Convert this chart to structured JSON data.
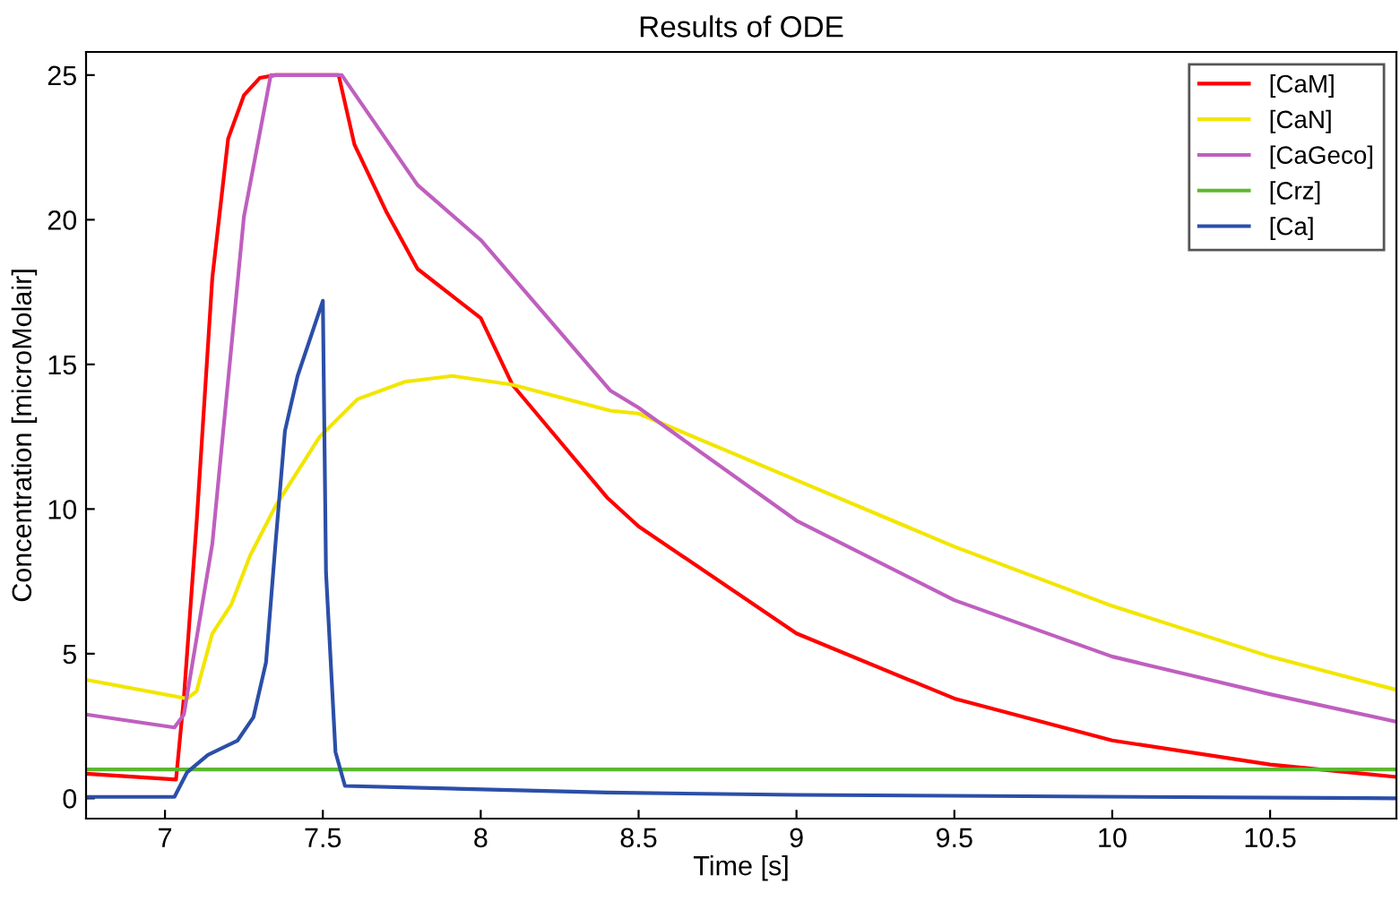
{
  "chart_data": {
    "type": "line",
    "title": "Results of ODE",
    "xlabel": "Time [s]",
    "ylabel": "Concentration [microMolair]",
    "xlim": [
      6.75,
      10.9
    ],
    "ylim": [
      -0.7,
      25.8
    ],
    "xticks": [
      7,
      7.5,
      8,
      8.5,
      9,
      9.5,
      10,
      10.5
    ],
    "yticks": [
      0,
      5,
      10,
      15,
      20,
      25
    ],
    "grid": false,
    "legend": "top right",
    "marker": "none",
    "line_style": "solid",
    "series": [
      {
        "name": "[CaM]",
        "color": "#ff0000",
        "x": [
          6.75,
          7.035,
          7.06,
          7.1,
          7.15,
          7.2,
          7.25,
          7.3,
          7.35,
          7.55,
          7.6,
          7.7,
          7.8,
          8.0,
          8.1,
          8.4,
          8.5,
          9.0,
          9.5,
          10.0,
          10.5,
          10.9
        ],
        "values": [
          0.85,
          0.65,
          3.5,
          9.5,
          18,
          22.8,
          24.3,
          24.9,
          25,
          25,
          22.6,
          20.3,
          18.3,
          16.6,
          14.3,
          10.4,
          9.4,
          5.7,
          3.45,
          2.0,
          1.17,
          0.74
        ]
      },
      {
        "name": "[CaN]",
        "color": "#f2e600",
        "x": [
          6.75,
          7.07,
          7.1,
          7.15,
          7.21,
          7.27,
          7.35,
          7.49,
          7.61,
          7.76,
          7.91,
          8.1,
          8.41,
          8.5,
          9.0,
          9.5,
          10.0,
          10.5,
          10.9
        ],
        "values": [
          4.1,
          3.45,
          3.7,
          5.7,
          6.7,
          8.4,
          10.1,
          12.5,
          13.8,
          14.4,
          14.6,
          14.3,
          13.4,
          13.3,
          11.0,
          8.7,
          6.65,
          4.9,
          3.75
        ]
      },
      {
        "name": "[CaGeco]",
        "color": "#bf5fbf",
        "x": [
          6.75,
          7.03,
          7.06,
          7.15,
          7.25,
          7.335,
          7.56,
          7.8,
          8.0,
          8.41,
          8.5,
          9.0,
          9.5,
          10.0,
          10.5,
          10.9
        ],
        "values": [
          2.9,
          2.45,
          2.9,
          8.8,
          20.1,
          25,
          25,
          21.2,
          19.3,
          14.1,
          13.5,
          9.6,
          6.85,
          4.9,
          3.6,
          2.65
        ]
      },
      {
        "name": "[Crz]",
        "color": "#5cb82e",
        "x": [
          6.75,
          10.9
        ],
        "values": [
          1,
          1
        ]
      },
      {
        "name": "[Ca]",
        "color": "#2b4fa8",
        "x": [
          6.75,
          7.03,
          7.07,
          7.136,
          7.23,
          7.28,
          7.32,
          7.35,
          7.38,
          7.42,
          7.5,
          7.51,
          7.54,
          7.57,
          8.4,
          9.0,
          10.9
        ],
        "values": [
          0.05,
          0.05,
          0.9,
          1.5,
          2.0,
          2.8,
          4.7,
          8.8,
          12.7,
          14.6,
          17.2,
          7.8,
          1.6,
          0.43,
          0.2,
          0.12,
          0.0
        ]
      }
    ]
  }
}
